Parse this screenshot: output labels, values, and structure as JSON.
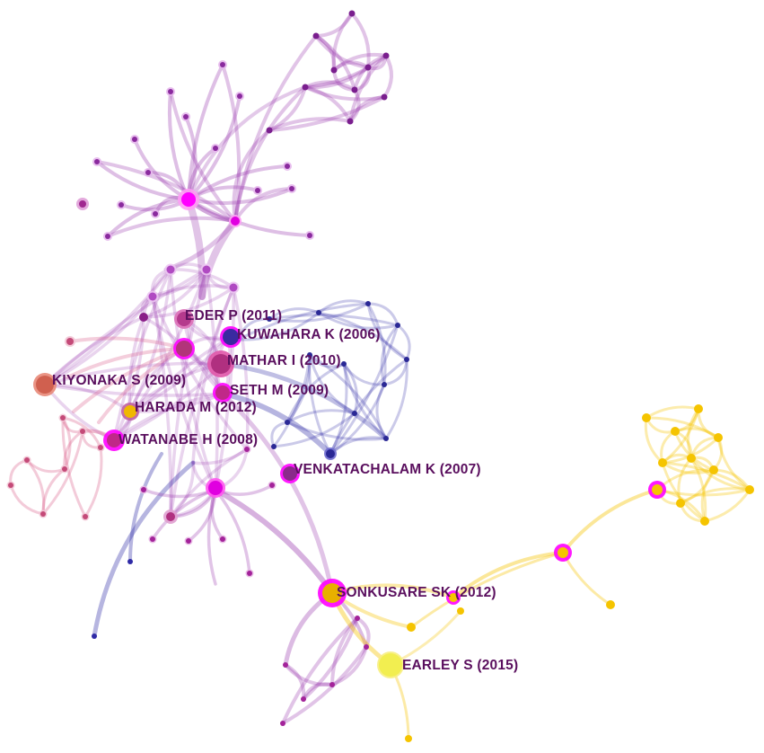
{
  "colors": {
    "purple": "#9b3db0",
    "magenta": "#ff00ff",
    "blue": "#2f2aa6",
    "yellow": "#f5c400",
    "pink": "#d95c8a",
    "orange_red": "#e07060",
    "label_text": "#5a0f5e",
    "background": "#ffffff"
  },
  "labels": [
    {
      "id": "eder",
      "text": "EDER P (2011)"
    },
    {
      "id": "kuwahara",
      "text": "KUWAHARA K (2006)"
    },
    {
      "id": "mathar",
      "text": "MATHAR I (2010)"
    },
    {
      "id": "kiyonaka",
      "text": "KIYONAKA S (2009)"
    },
    {
      "id": "seth",
      "text": "SETH M (2009)"
    },
    {
      "id": "harada",
      "text": "HARADA M (2012)"
    },
    {
      "id": "watanabe",
      "text": "WATANABE H (2008)"
    },
    {
      "id": "venkatachalam",
      "text": "VENKATACHALAM K (2007)"
    },
    {
      "id": "sonkusare",
      "text": "SONKUSARE SK (2012)"
    },
    {
      "id": "earley",
      "text": "EARLEY S (2015)"
    }
  ]
}
